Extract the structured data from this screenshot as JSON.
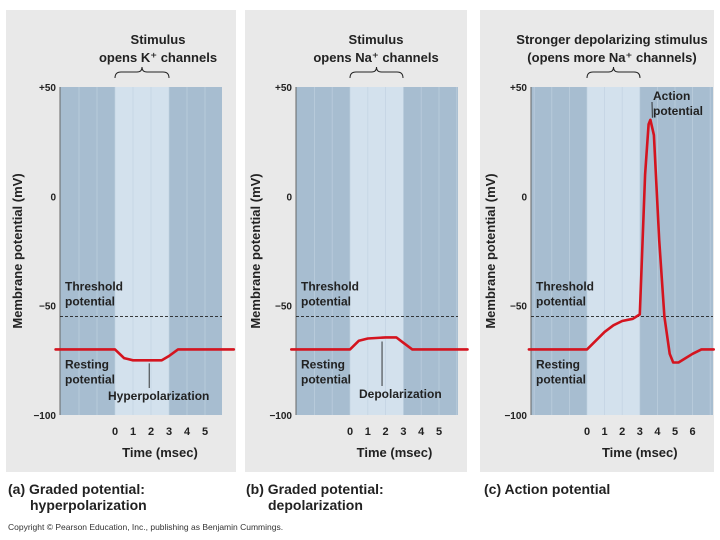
{
  "colors": {
    "plot_dark": "#a7bdd0",
    "plot_light": "#d3e1ed",
    "grid": "#c1d2e1",
    "trace": "#d4141f",
    "threshold_line": "#222222",
    "text": "#222222"
  },
  "chart_data": [
    {
      "id": "a",
      "type": "line",
      "stimulus_line1": "Stimulus",
      "stimulus_line2": "opens K⁺ channels",
      "ylabel": "Membrane potential (mV)",
      "xlabel": "Time (msec)",
      "ylim": [
        -100,
        50
      ],
      "yticks": [
        "+50",
        "0",
        "−50",
        "−100"
      ],
      "xlim": [
        -3.3,
        6.6
      ],
      "xticks": [
        "0",
        "1",
        "2",
        "3",
        "4",
        "5"
      ],
      "stimulus_window": [
        0,
        3
      ],
      "threshold": -55,
      "threshold_label": [
        "Threshold",
        "potential"
      ],
      "resting_label": [
        "Resting",
        "potential"
      ],
      "event_label": "Hyperpolarization",
      "caption": [
        "(a) Graded potential:",
        "hyperpolarization"
      ],
      "series": [
        {
          "name": "membrane potential",
          "x": [
            -3.3,
            0,
            0.5,
            1,
            2,
            2.6,
            3,
            3.5,
            4,
            6.6
          ],
          "y": [
            -70,
            -70,
            -74,
            -75,
            -75,
            -75,
            -73,
            -70,
            -70,
            -70
          ]
        }
      ]
    },
    {
      "id": "b",
      "type": "line",
      "stimulus_line1": "Stimulus",
      "stimulus_line2": "opens Na⁺ channels",
      "ylabel": "Membrane potential (mV)",
      "xlabel": "Time (msec)",
      "ylim": [
        -100,
        50
      ],
      "yticks": [
        "+50",
        "0",
        "−50",
        "−100"
      ],
      "xlim": [
        -3.3,
        6.6
      ],
      "xticks": [
        "0",
        "1",
        "2",
        "3",
        "4",
        "5"
      ],
      "stimulus_window": [
        0,
        3
      ],
      "threshold": -55,
      "threshold_label": [
        "Threshold",
        "potential"
      ],
      "resting_label": [
        "Resting",
        "potential"
      ],
      "event_label": "Depolarization",
      "caption": [
        "(b) Graded potential:",
        "depolarization"
      ],
      "series": [
        {
          "name": "membrane potential",
          "x": [
            -3.3,
            0,
            0.5,
            1,
            2,
            2.6,
            3,
            3.5,
            4,
            6.6
          ],
          "y": [
            -70,
            -70,
            -66,
            -65,
            -64.5,
            -64.5,
            -67,
            -70,
            -70,
            -70
          ]
        }
      ]
    },
    {
      "id": "c",
      "type": "line",
      "stimulus_line1": "Stronger depolarizing stimulus",
      "stimulus_line2": "(opens more Na⁺ channels)",
      "ylabel": "Membrane potential (mV)",
      "xlabel": "Time (msec)",
      "ylim": [
        -100,
        50
      ],
      "yticks": [
        "+50",
        "0",
        "−50",
        "−100"
      ],
      "xlim": [
        -3.3,
        7.2
      ],
      "xticks": [
        "0",
        "1",
        "2",
        "3",
        "4",
        "5",
        "6"
      ],
      "stimulus_window": [
        0,
        3
      ],
      "threshold": -55,
      "threshold_label": [
        "Threshold",
        "potential"
      ],
      "resting_label": [
        "Resting",
        "potential"
      ],
      "event_label": [
        "Action",
        "potential"
      ],
      "caption": [
        "(c) Action potential"
      ],
      "series": [
        {
          "name": "membrane potential",
          "x": [
            -3.3,
            0,
            0.5,
            1,
            1.5,
            2,
            2.6,
            3.0,
            3.3,
            3.5,
            3.6,
            3.8,
            4.1,
            4.4,
            4.7,
            4.9,
            5.2,
            5.6,
            6,
            6.5,
            7.2
          ],
          "y": [
            -70,
            -70,
            -66,
            -62,
            -59,
            -57,
            -56,
            -54,
            10,
            33,
            35,
            28,
            -20,
            -55,
            -72,
            -76,
            -76,
            -74,
            -72,
            -70,
            -70
          ]
        }
      ]
    }
  ],
  "copyright": "Copyright © Pearson Education, Inc., publishing as Benjamin Cummings."
}
